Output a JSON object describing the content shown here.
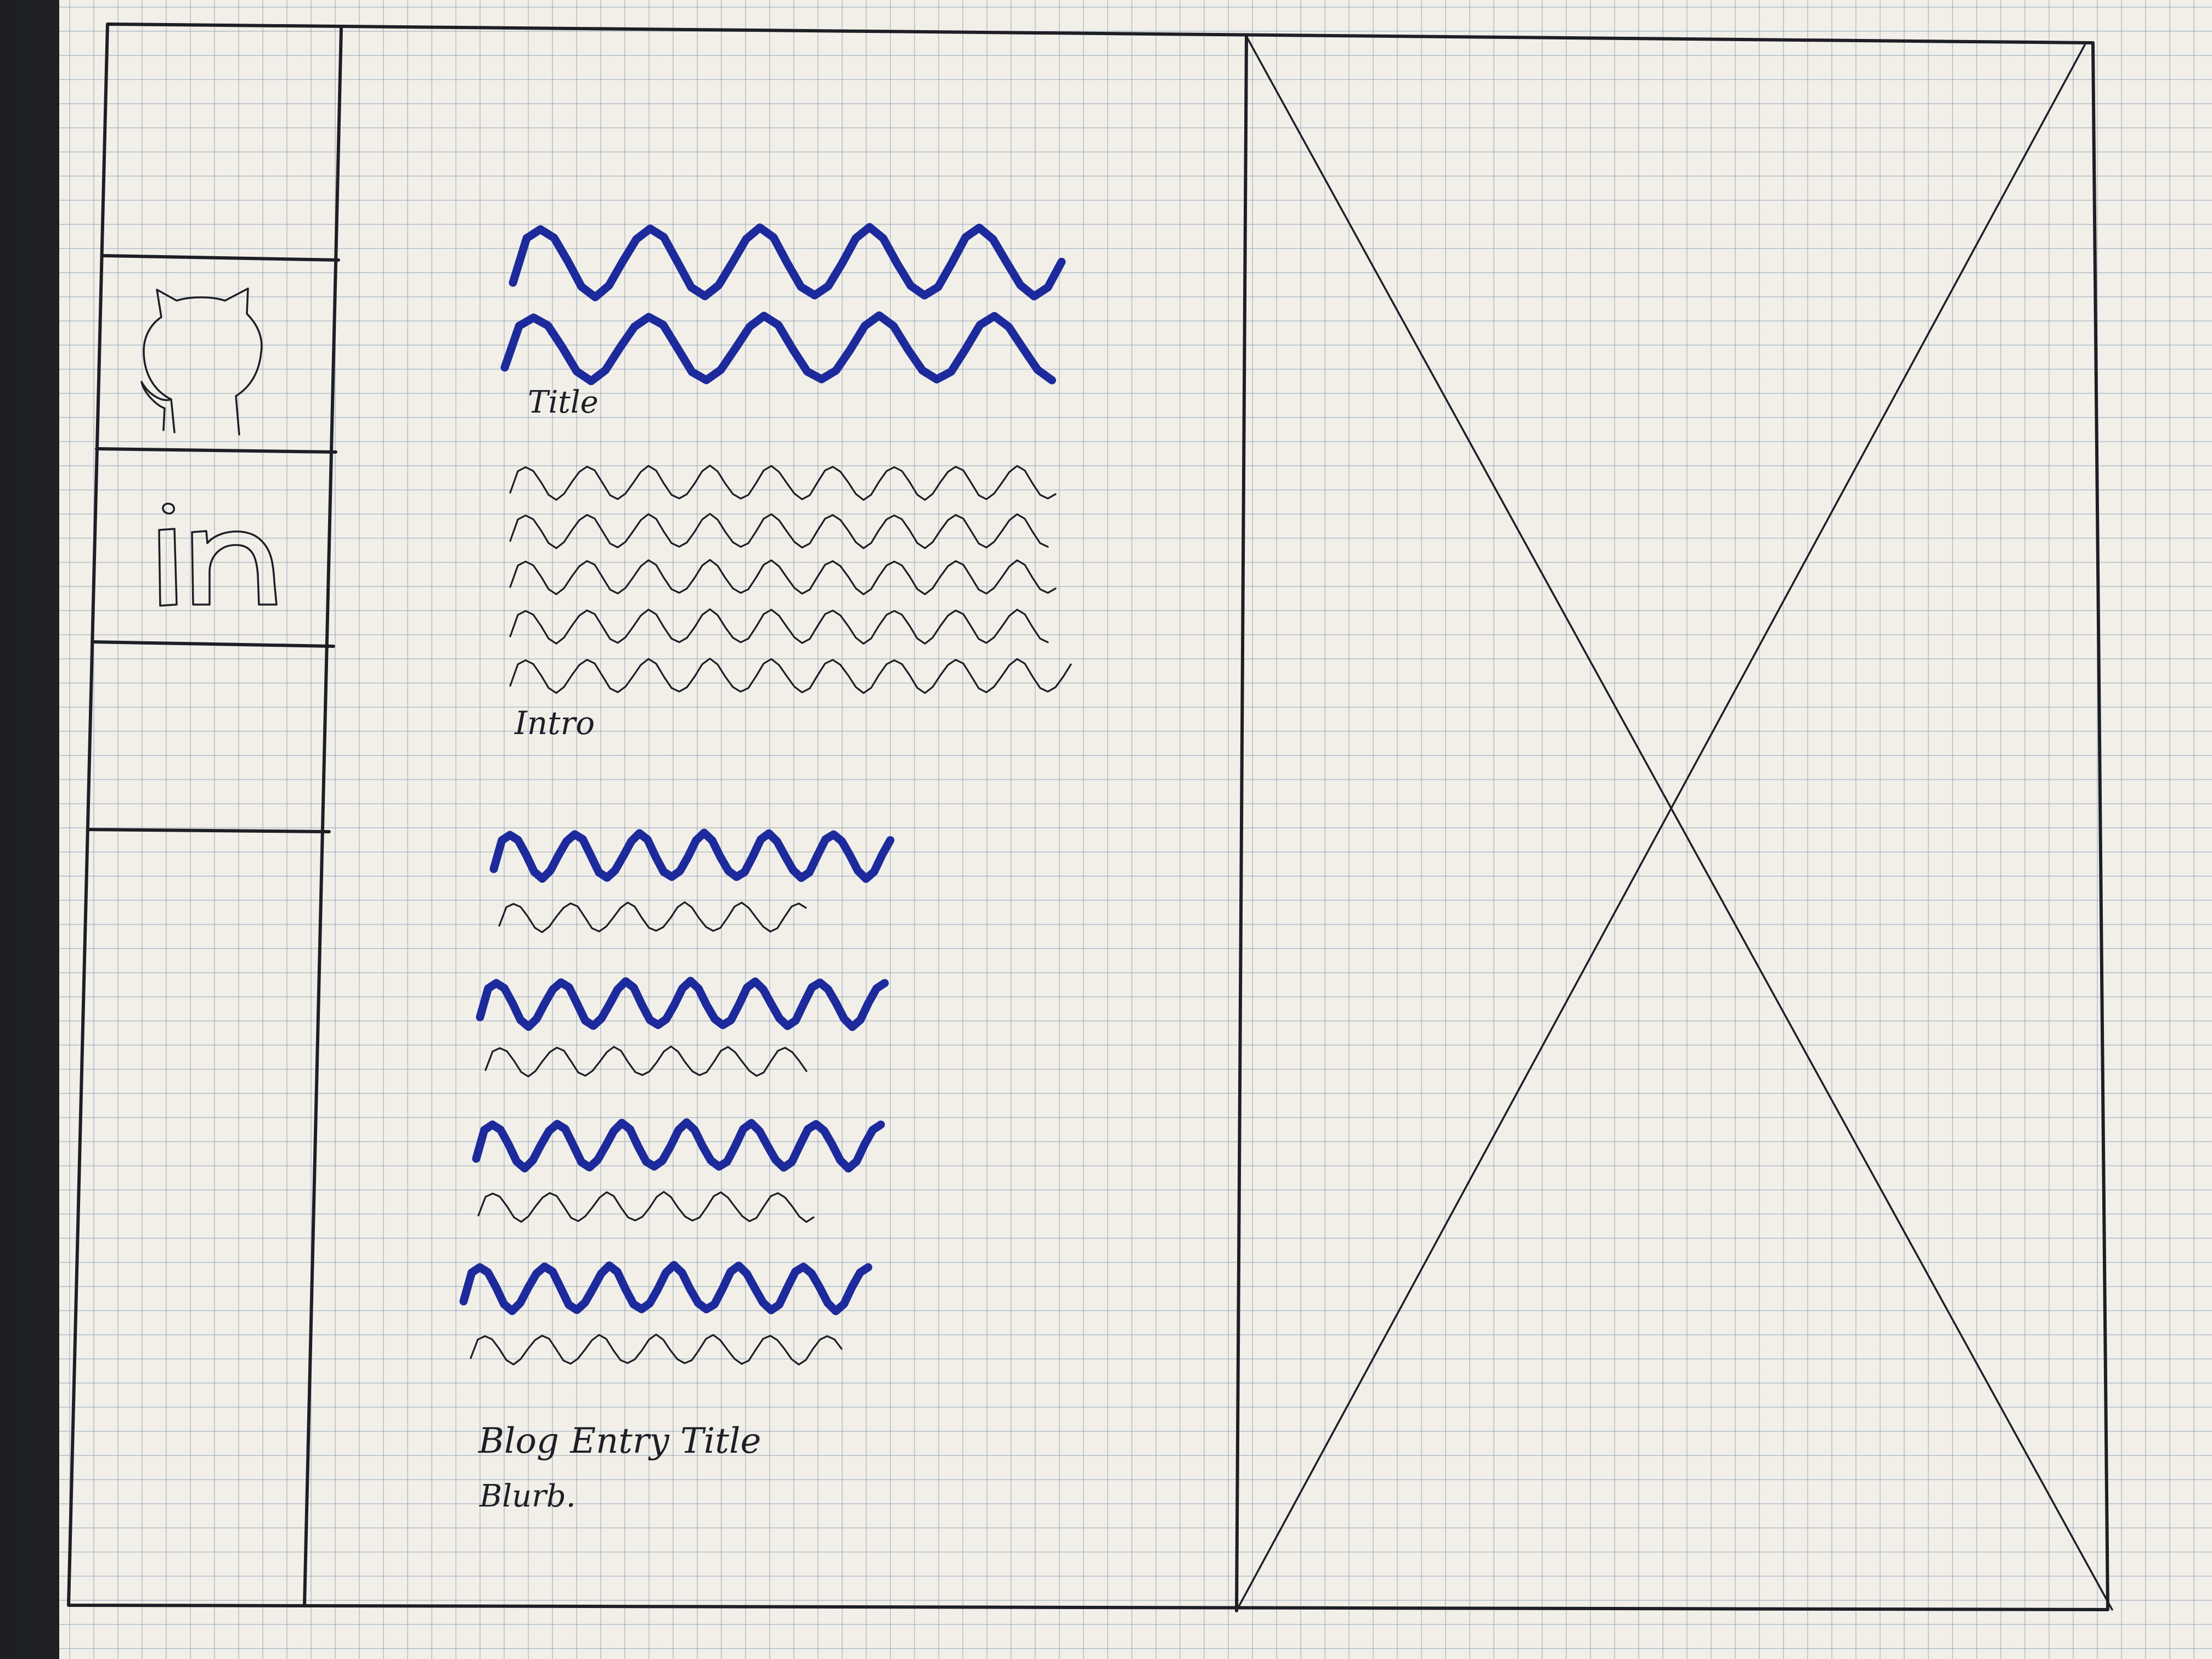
{
  "labels": {
    "title": "Title",
    "intro": "Intro",
    "blog_entry_title": "Blog Entry Title",
    "blurb": "Blurb."
  },
  "sidebar": {
    "items": [
      {
        "icon": "blank"
      },
      {
        "icon": "github-octocat-icon"
      },
      {
        "icon": "linkedin-icon",
        "text": "in"
      },
      {
        "icon": "blank"
      },
      {
        "icon": "blank"
      }
    ]
  },
  "image_placeholder": {
    "icon": "x-cross-placeholder"
  },
  "colors": {
    "paper": "#f1efe8",
    "grid": "#8296af",
    "ink": "#1e1e26",
    "blue_marker": "#1d2a9c"
  }
}
